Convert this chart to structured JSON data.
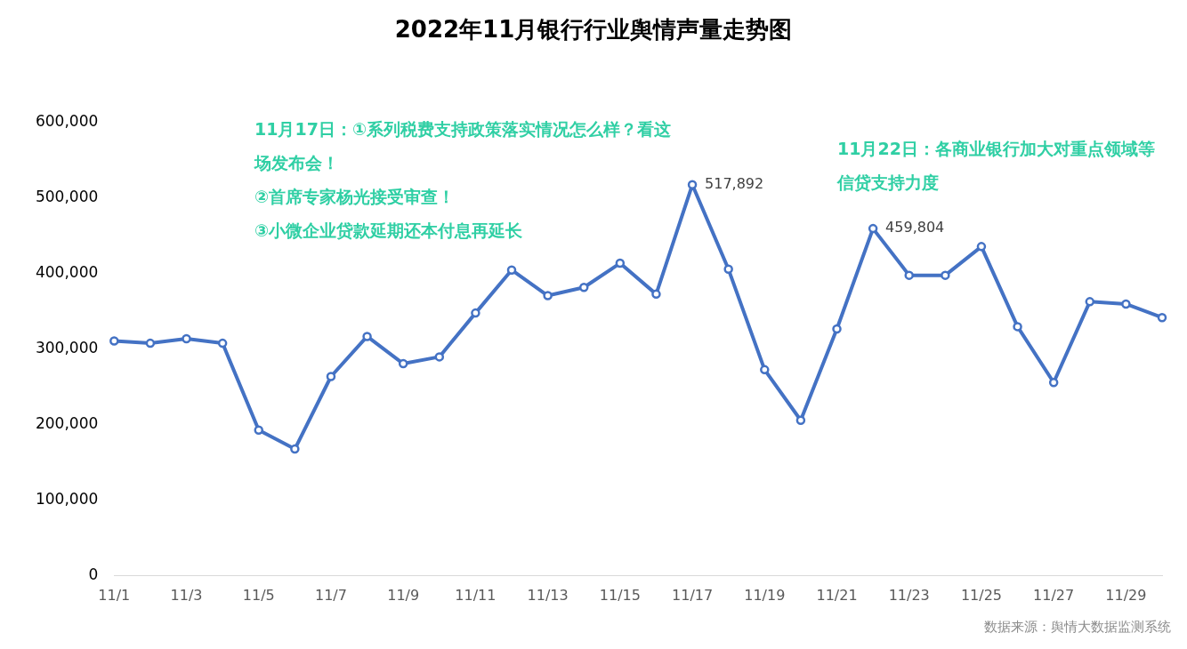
{
  "chart_data": {
    "type": "line",
    "title": "2022年11月银行行业舆情声量走势图",
    "categories": [
      "11/1",
      null,
      "11/3",
      null,
      "11/5",
      null,
      "11/7",
      null,
      "11/9",
      null,
      "11/11",
      null,
      "11/13",
      null,
      "11/15",
      null,
      "11/17",
      null,
      "11/19",
      null,
      "11/21",
      null,
      "11/23",
      null,
      "11/25",
      null,
      "11/27",
      null,
      "11/29",
      null
    ],
    "series": [
      {
        "color": "#4472c4",
        "values": [
          311000,
          308000,
          314000,
          308000,
          193000,
          168000,
          264000,
          317000,
          281000,
          290000,
          348000,
          405000,
          371000,
          382000,
          414000,
          373000,
          517892,
          406000,
          273000,
          206000,
          327000,
          459804,
          398000,
          398000,
          436000,
          330000,
          256000,
          363000,
          360000,
          342000
        ],
        "value_labels": [
          null,
          null,
          null,
          null,
          null,
          null,
          null,
          null,
          null,
          null,
          null,
          null,
          null,
          null,
          null,
          null,
          "517,892",
          null,
          null,
          null,
          null,
          "459,804",
          null,
          null,
          null,
          null,
          null,
          null,
          null,
          null
        ]
      }
    ],
    "ylim": [
      0,
      600000
    ],
    "yticks": [
      0,
      {
        "value": 100000,
        "label": "100,000"
      },
      {
        "value": 200000,
        "label": "200,000"
      },
      {
        "value": 300000,
        "label": "300,000"
      },
      {
        "value": 400000,
        "label": "400,000"
      },
      {
        "value": 500000,
        "label": "500,000"
      },
      {
        "value": 600000,
        "label": "600,000"
      }
    ],
    "grid": false,
    "legend": false,
    "marker": "circle",
    "line_style": "solid",
    "annotations": [
      "11月17日：①系列税费支持政策落实情况怎么样？看这场发布会！\n②首席专家杨光接受审查！\n③小微企业贷款延期还本付息再延长",
      "11月22日：各商业银行加大对重点领域等信贷支持力度",
      "数据来源：舆情大数据监测系统"
    ]
  }
}
